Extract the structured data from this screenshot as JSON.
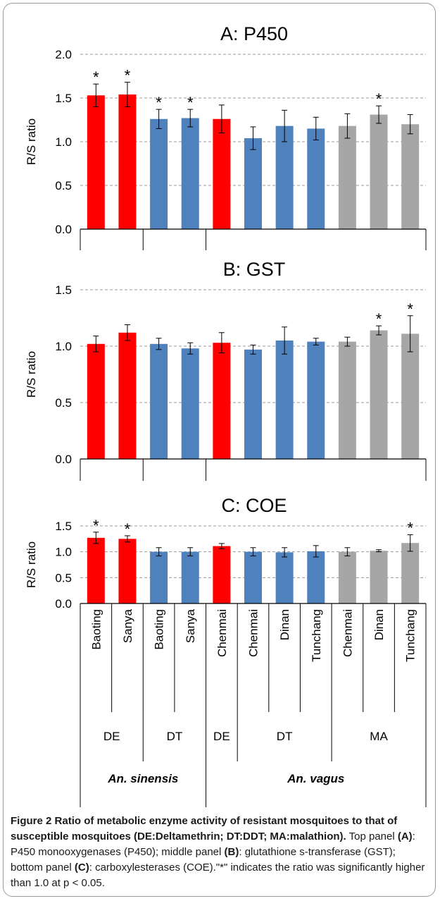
{
  "chart_data": [
    {
      "type": "bar",
      "title": "A: P450",
      "ylabel": "R/S ratio",
      "ylim": [
        0,
        2.0
      ],
      "yticks": [
        "0.0",
        "0.5",
        "1.0",
        "1.5",
        "2.0"
      ],
      "categories": [
        "Baoting",
        "Sanya",
        "Baoting",
        "Sanya",
        "Chenmai",
        "Chenmai",
        "Dinan",
        "Tunchang",
        "Chenmai",
        "Dinan",
        "Tunchang"
      ],
      "values": [
        1.53,
        1.54,
        1.26,
        1.27,
        1.26,
        1.04,
        1.18,
        1.15,
        1.18,
        1.31,
        1.2
      ],
      "errors": [
        0.13,
        0.14,
        0.11,
        0.1,
        0.16,
        0.13,
        0.18,
        0.13,
        0.14,
        0.1,
        0.11
      ],
      "significant": [
        true,
        true,
        true,
        true,
        false,
        false,
        false,
        false,
        false,
        true,
        false
      ],
      "colors": [
        "#ff0000",
        "#ff0000",
        "#4f81bd",
        "#4f81bd",
        "#ff0000",
        "#4f81bd",
        "#4f81bd",
        "#4f81bd",
        "#a6a6a6",
        "#a6a6a6",
        "#a6a6a6"
      ],
      "grid": true
    },
    {
      "type": "bar",
      "title": "B: GST",
      "ylabel": "R/S ratio",
      "ylim": [
        0,
        1.5
      ],
      "yticks": [
        "0.0",
        "0.5",
        "1.0",
        "1.5"
      ],
      "categories": [
        "Baoting",
        "Sanya",
        "Baoting",
        "Sanya",
        "Chenmai",
        "Chenmai",
        "Dinan",
        "Tunchang",
        "Chenmai",
        "Dinan",
        "Tunchang"
      ],
      "values": [
        1.02,
        1.12,
        1.02,
        0.98,
        1.03,
        0.97,
        1.05,
        1.04,
        1.04,
        1.14,
        1.11
      ],
      "errors": [
        0.07,
        0.07,
        0.05,
        0.05,
        0.09,
        0.04,
        0.12,
        0.03,
        0.04,
        0.04,
        0.16
      ],
      "significant": [
        false,
        false,
        false,
        false,
        false,
        false,
        false,
        false,
        false,
        true,
        true
      ],
      "colors": [
        "#ff0000",
        "#ff0000",
        "#4f81bd",
        "#4f81bd",
        "#ff0000",
        "#4f81bd",
        "#4f81bd",
        "#4f81bd",
        "#a6a6a6",
        "#a6a6a6",
        "#a6a6a6"
      ],
      "grid": true
    },
    {
      "type": "bar",
      "title": "C: COE",
      "ylabel": "R/S ratio",
      "ylim": [
        0,
        1.5
      ],
      "yticks": [
        "0.0",
        "0.5",
        "1.0",
        "1.5"
      ],
      "categories": [
        "Baoting",
        "Sanya",
        "Baoting",
        "Sanya",
        "Chenmai",
        "Chenmai",
        "Dinan",
        "Tunchang",
        "Chenmai",
        "Dinan",
        "Tunchang"
      ],
      "values": [
        1.27,
        1.25,
        1.0,
        1.0,
        1.11,
        1.0,
        0.99,
        1.01,
        1.0,
        1.02,
        1.17
      ],
      "errors": [
        0.11,
        0.06,
        0.08,
        0.08,
        0.05,
        0.08,
        0.09,
        0.11,
        0.08,
        0.02,
        0.16
      ],
      "significant": [
        true,
        true,
        false,
        false,
        false,
        false,
        false,
        false,
        false,
        false,
        true
      ],
      "colors": [
        "#ff0000",
        "#ff0000",
        "#4f81bd",
        "#4f81bd",
        "#ff0000",
        "#4f81bd",
        "#4f81bd",
        "#4f81bd",
        "#a6a6a6",
        "#a6a6a6",
        "#a6a6a6"
      ],
      "grid": true
    }
  ],
  "significance_marker": "*",
  "treatment_groups": [
    {
      "label": "DE",
      "span": [
        0,
        1
      ]
    },
    {
      "label": "DT",
      "span": [
        2,
        3
      ]
    },
    {
      "label": "DE",
      "span": [
        4,
        4
      ]
    },
    {
      "label": "DT",
      "span": [
        5,
        7
      ]
    },
    {
      "label": "MA",
      "span": [
        8,
        10
      ]
    }
  ],
  "species_groups": [
    {
      "label": "An. sinensis",
      "span": [
        0,
        3
      ]
    },
    {
      "label": "An. vagus",
      "span": [
        4,
        10
      ]
    }
  ],
  "caption": {
    "figure_label": "Figure 2",
    "title": "Ratio of metabolic enzyme activity of resistant mosquitoes to that of susceptible mosquitoes (DE:Deltamethrin; DT:DDT; MA:malathion).",
    "p1": " Top panel ",
    "a": "(A)",
    "p2": ": P450 monooxygenases (P450); middle panel ",
    "b": "(B)",
    "p3": ": glutathione s-transferase (GST); bottom panel ",
    "c": "(C)",
    "p4": ": carboxylesterases (COE).\"*\" indicates the ratio was significantly higher than 1.0 at p < 0.05."
  }
}
